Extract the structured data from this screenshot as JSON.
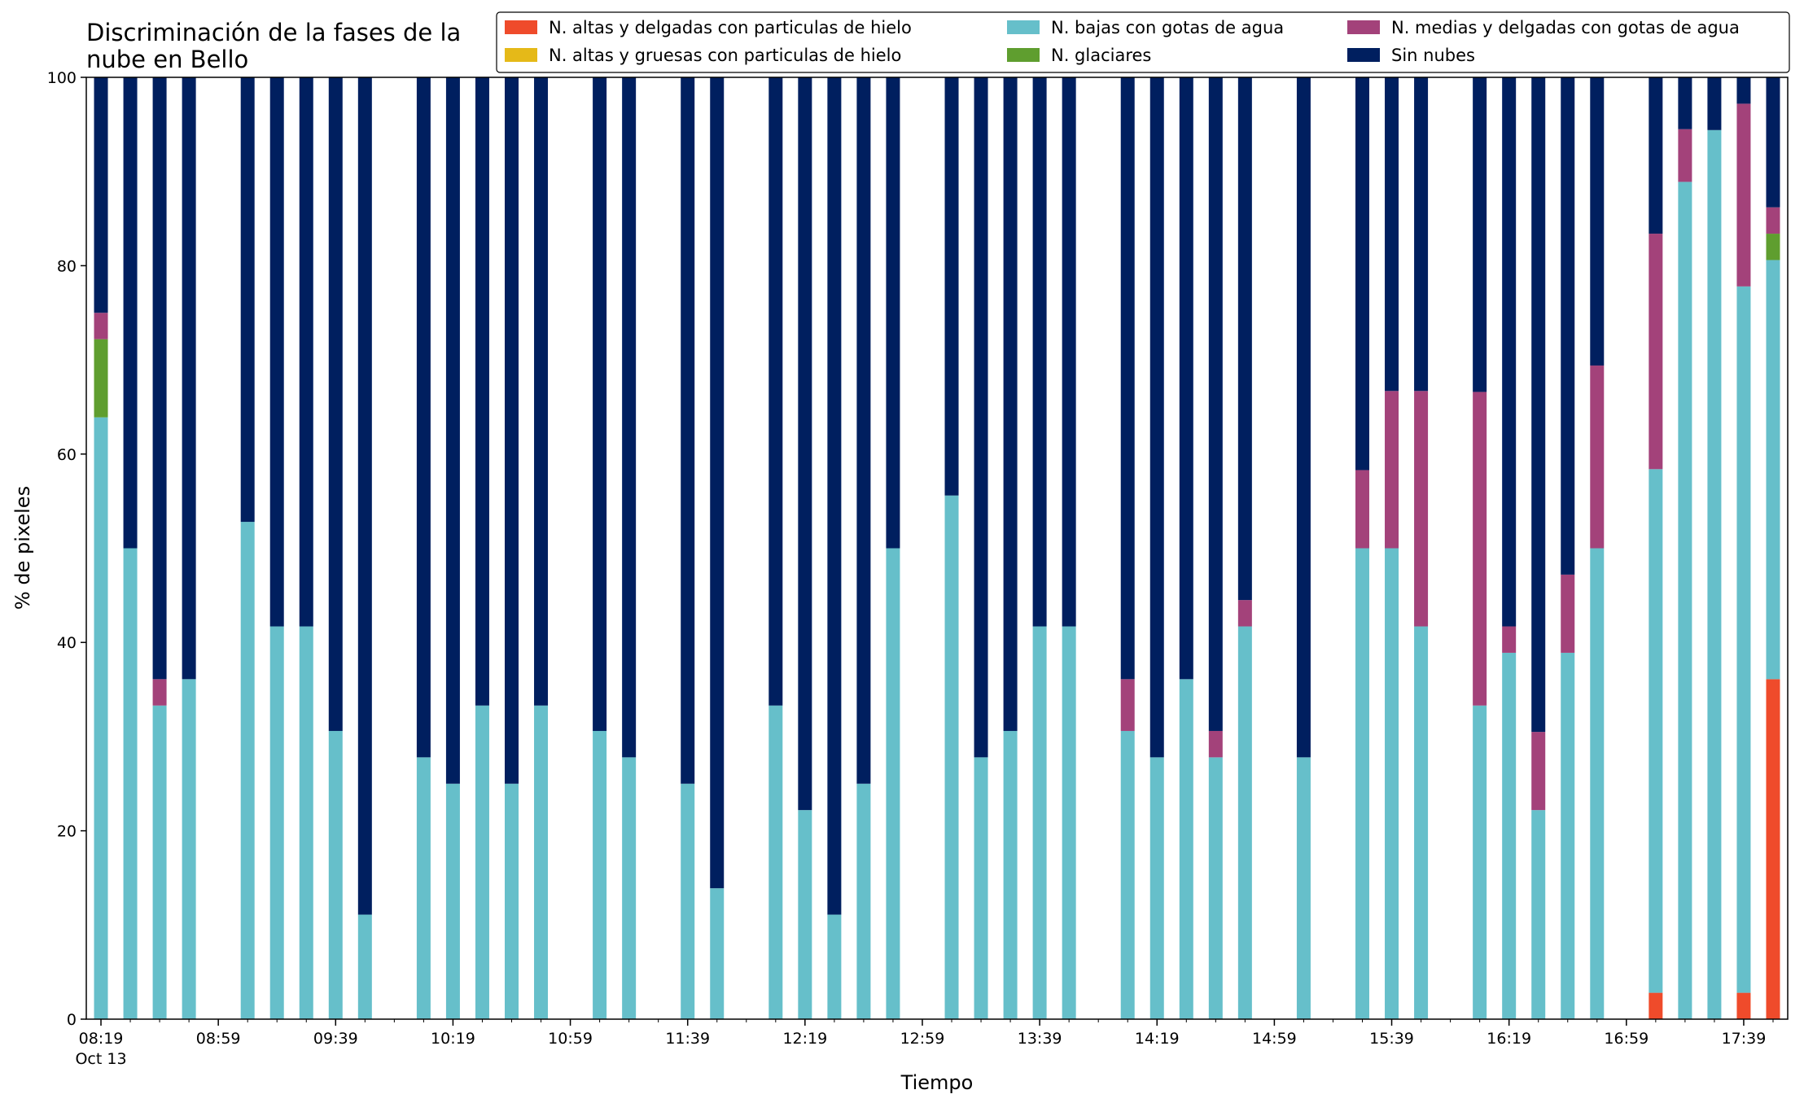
{
  "chart_data": {
    "type": "bar",
    "stacked": true,
    "title_lines": [
      "Discriminación de la fases de la",
      "nube en Bello"
    ],
    "xlabel": "Tiempo",
    "ylabel": "% de pixeles",
    "ylim": [
      0,
      100
    ],
    "yticks": [
      "0",
      "20",
      "40",
      "60",
      "80",
      "100"
    ],
    "xlim": [
      "08:14",
      "17:54"
    ],
    "xtick_labels": [
      {
        "time": "08:19",
        "label": "08:19",
        "sublabel": "Oct 13"
      },
      {
        "time": "08:59",
        "label": "08:59"
      },
      {
        "time": "09:39",
        "label": "09:39"
      },
      {
        "time": "10:19",
        "label": "10:19"
      },
      {
        "time": "10:59",
        "label": "10:59"
      },
      {
        "time": "11:39",
        "label": "11:39"
      },
      {
        "time": "12:19",
        "label": "12:19"
      },
      {
        "time": "12:59",
        "label": "12:59"
      },
      {
        "time": "13:39",
        "label": "13:39"
      },
      {
        "time": "14:19",
        "label": "14:19"
      },
      {
        "time": "14:59",
        "label": "14:59"
      },
      {
        "time": "15:39",
        "label": "15:39"
      },
      {
        "time": "16:19",
        "label": "16:19"
      },
      {
        "time": "16:59",
        "label": "16:59"
      },
      {
        "time": "17:39",
        "label": "17:39"
      }
    ],
    "legend_placement": "top-right",
    "legend_columns": 3,
    "series": [
      {
        "name": "N. altas y delgadas con particulas de hielo",
        "color": "#ef4b2b"
      },
      {
        "name": "N. altas y gruesas con particulas de hielo",
        "color": "#e5b918"
      },
      {
        "name": "N. bajas con gotas de agua",
        "color": "#66bfca"
      },
      {
        "name": "N. glaciares",
        "color": "#5f9e2f"
      },
      {
        "name": "N. medias y delgadas con gotas de agua",
        "color": "#a3427a"
      },
      {
        "name": "Sin nubes",
        "color": "#001f5f"
      }
    ],
    "stack_order": [
      "N. altas y delgadas con particulas de hielo",
      "N. altas y gruesas con particulas de hielo",
      "N. bajas con gotas de agua",
      "N. glaciares",
      "N. medias y delgadas con gotas de agua",
      "Sin nubes"
    ],
    "bars": [
      {
        "time": "08:19",
        "values": [
          0,
          0,
          63.9,
          8.3,
          2.8,
          25.0
        ]
      },
      {
        "time": "08:29",
        "values": [
          0,
          0,
          50.0,
          0,
          0,
          50.0
        ]
      },
      {
        "time": "08:39",
        "values": [
          0,
          0,
          33.3,
          0,
          2.8,
          63.9
        ]
      },
      {
        "time": "08:49",
        "values": [
          0,
          0,
          36.1,
          0,
          0,
          63.9
        ]
      },
      {
        "time": "09:09",
        "values": [
          0,
          0,
          52.8,
          0,
          0,
          47.2
        ]
      },
      {
        "time": "09:19",
        "values": [
          0,
          0,
          41.7,
          0,
          0,
          58.3
        ]
      },
      {
        "time": "09:29",
        "values": [
          0,
          0,
          41.7,
          0,
          0,
          58.3
        ]
      },
      {
        "time": "09:39",
        "values": [
          0,
          0,
          30.6,
          0,
          0,
          69.4
        ]
      },
      {
        "time": "09:49",
        "values": [
          0,
          0,
          11.1,
          0,
          0,
          88.9
        ]
      },
      {
        "time": "10:09",
        "values": [
          0,
          0,
          27.8,
          0,
          0,
          72.2
        ]
      },
      {
        "time": "10:19",
        "values": [
          0,
          0,
          25.0,
          0,
          0,
          75.0
        ]
      },
      {
        "time": "10:29",
        "values": [
          0,
          0,
          33.3,
          0,
          0,
          66.7
        ]
      },
      {
        "time": "10:39",
        "values": [
          0,
          0,
          25.0,
          0,
          0,
          75.0
        ]
      },
      {
        "time": "10:49",
        "values": [
          0,
          0,
          33.3,
          0,
          0,
          66.7
        ]
      },
      {
        "time": "11:09",
        "values": [
          0,
          0,
          30.6,
          0,
          0,
          69.4
        ]
      },
      {
        "time": "11:19",
        "values": [
          0,
          0,
          27.8,
          0,
          0,
          72.2
        ]
      },
      {
        "time": "11:39",
        "values": [
          0,
          0,
          25.0,
          0,
          0,
          75.0
        ]
      },
      {
        "time": "11:49",
        "values": [
          0,
          0,
          13.9,
          0,
          0,
          86.1
        ]
      },
      {
        "time": "12:09",
        "values": [
          0,
          0,
          33.3,
          0,
          0,
          66.7
        ]
      },
      {
        "time": "12:19",
        "values": [
          0,
          0,
          22.2,
          0,
          0,
          77.8
        ]
      },
      {
        "time": "12:29",
        "values": [
          0,
          0,
          11.1,
          0,
          0,
          88.9
        ]
      },
      {
        "time": "12:39",
        "values": [
          0,
          0,
          25.0,
          0,
          0,
          75.0
        ]
      },
      {
        "time": "12:49",
        "values": [
          0,
          0,
          50.0,
          0,
          0,
          50.0
        ]
      },
      {
        "time": "13:09",
        "values": [
          0,
          0,
          55.6,
          0,
          0,
          44.4
        ]
      },
      {
        "time": "13:19",
        "values": [
          0,
          0,
          27.8,
          0,
          0,
          72.2
        ]
      },
      {
        "time": "13:29",
        "values": [
          0,
          0,
          30.6,
          0,
          0,
          69.4
        ]
      },
      {
        "time": "13:39",
        "values": [
          0,
          0,
          41.7,
          0,
          0,
          58.3
        ]
      },
      {
        "time": "13:49",
        "values": [
          0,
          0,
          41.7,
          0,
          0,
          58.3
        ]
      },
      {
        "time": "14:09",
        "values": [
          0,
          0,
          30.6,
          0,
          5.5,
          63.9
        ]
      },
      {
        "time": "14:19",
        "values": [
          0,
          0,
          27.8,
          0,
          0,
          72.2
        ]
      },
      {
        "time": "14:29",
        "values": [
          0,
          0,
          36.1,
          0,
          0,
          63.9
        ]
      },
      {
        "time": "14:39",
        "values": [
          0,
          0,
          27.8,
          0,
          2.8,
          69.4
        ]
      },
      {
        "time": "14:49",
        "values": [
          0,
          0,
          41.7,
          0,
          2.8,
          55.5
        ]
      },
      {
        "time": "15:09",
        "values": [
          0,
          0,
          27.8,
          0,
          0,
          72.2
        ]
      },
      {
        "time": "15:29",
        "values": [
          0,
          0,
          50.0,
          0,
          8.3,
          41.7
        ]
      },
      {
        "time": "15:39",
        "values": [
          0,
          0,
          50.0,
          0,
          16.7,
          33.3
        ]
      },
      {
        "time": "15:49",
        "values": [
          0,
          0,
          41.7,
          0,
          25.0,
          33.3
        ]
      },
      {
        "time": "16:09",
        "values": [
          0,
          0,
          33.3,
          0,
          33.3,
          33.4
        ]
      },
      {
        "time": "16:19",
        "values": [
          0,
          0,
          38.9,
          0,
          2.8,
          58.3
        ]
      },
      {
        "time": "16:29",
        "values": [
          0,
          0,
          22.2,
          0,
          8.3,
          69.5
        ]
      },
      {
        "time": "16:39",
        "values": [
          0,
          0,
          38.9,
          0,
          8.3,
          52.8
        ]
      },
      {
        "time": "16:49",
        "values": [
          0,
          0,
          50.0,
          0,
          19.4,
          30.6
        ]
      },
      {
        "time": "17:09",
        "values": [
          2.8,
          0,
          55.6,
          0,
          25.0,
          16.6
        ]
      },
      {
        "time": "17:19",
        "values": [
          0,
          0,
          88.9,
          0,
          5.6,
          5.5
        ]
      },
      {
        "time": "17:29",
        "values": [
          0,
          0,
          94.4,
          0,
          0,
          5.6
        ]
      },
      {
        "time": "17:39",
        "values": [
          2.8,
          0,
          75.0,
          0,
          19.4,
          2.8
        ]
      },
      {
        "time": "17:49",
        "values": [
          36.1,
          0,
          44.5,
          2.8,
          2.8,
          13.8
        ]
      }
    ]
  }
}
